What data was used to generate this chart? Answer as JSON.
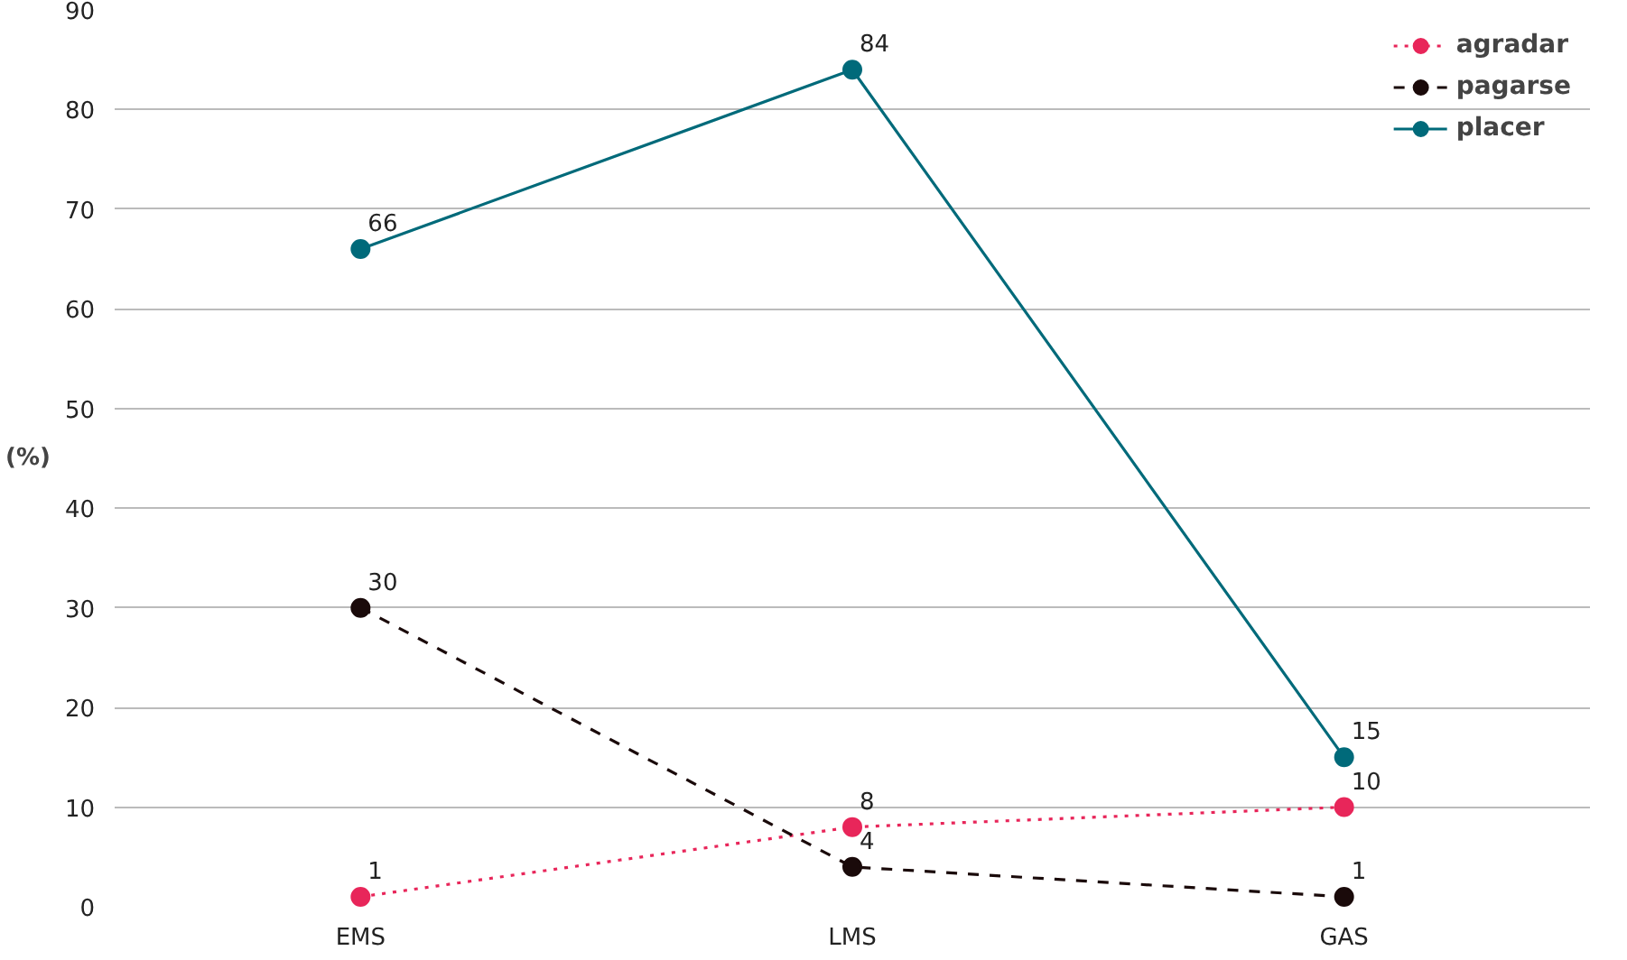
{
  "chart_data": {
    "type": "line",
    "ylabel": "(%)",
    "categories": [
      "EMS",
      "LMS",
      "GAS"
    ],
    "series": [
      {
        "name": "agradar",
        "color": "#e8265a",
        "values": [
          1,
          8,
          10
        ],
        "line_style": "dotted"
      },
      {
        "name": "pagarse",
        "color": "#1a0a0a",
        "values": [
          30,
          4,
          1
        ],
        "line_style": "dashed"
      },
      {
        "name": "placer",
        "color": "#006a7a",
        "values": [
          66,
          84,
          15
        ],
        "line_style": "solid"
      }
    ],
    "ylim": [
      0,
      90
    ],
    "yticks": [
      0,
      10,
      20,
      30,
      40,
      50,
      60,
      70,
      80,
      90
    ],
    "grid": "y",
    "legend": "top right",
    "marker": "circle",
    "data_labels": true
  }
}
